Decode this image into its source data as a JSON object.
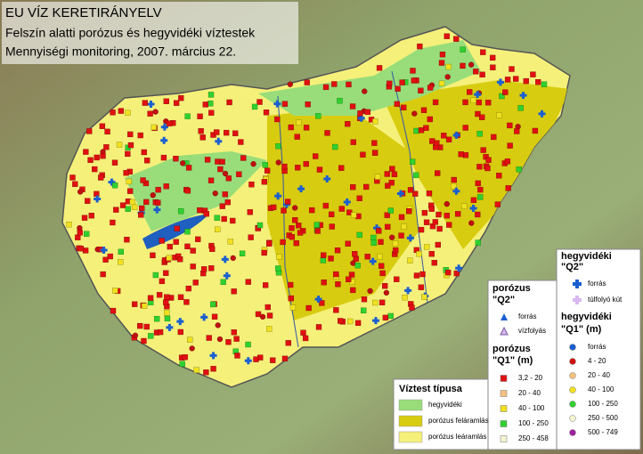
{
  "title": {
    "line1": "EU VÍZ KERETIRÁNYELV",
    "line2": "Felszín alatti porózus és hegyvidéki víztestek",
    "line3": "Mennyiségi monitoring, 2007. március 22."
  },
  "legend": {
    "porous_q2": {
      "heading1": "porózus",
      "heading2": "\"Q2\"",
      "items": [
        "forrás",
        "vízfolyás"
      ]
    },
    "porous_q1": {
      "heading1": "porózus",
      "heading2": "\"Q1\" (m)",
      "items": [
        "3,2 - 20",
        "20 - 40",
        "40 - 100",
        "100 - 250",
        "250 - 458"
      ]
    },
    "mountain_q2": {
      "heading1": "hegyvidéki",
      "heading2": "\"Q2\"",
      "items": [
        "forrás",
        "túlfolyó kút"
      ]
    },
    "mountain_q1": {
      "heading1": "hegyvidéki",
      "heading2": "\"Q1\" (m)",
      "items": [
        "forrás",
        "4 - 20",
        "20 - 40",
        "40 - 100",
        "100 - 250",
        "250 - 500",
        "500 - 749"
      ]
    },
    "body_type": {
      "heading": "Víztest típusa",
      "items": [
        "hegyvidéki",
        "porózus feláramlás",
        "porózus leáramlás"
      ]
    }
  }
}
